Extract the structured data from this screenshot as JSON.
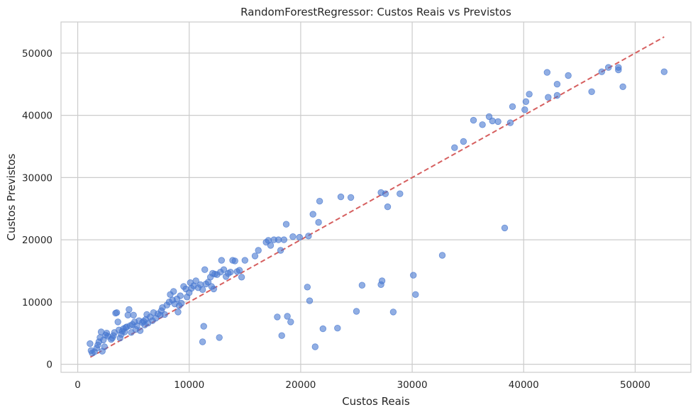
{
  "colors": {
    "background": "#ffffff",
    "grid": "#cccccc",
    "frame": "#cccccc",
    "point": "#4878d0",
    "ideal_line": "#d65f5f",
    "text": "#262626"
  },
  "chart_data": {
    "type": "scatter",
    "title": "RandomForestRegressor: Custos Reais vs Previstos",
    "xlabel": "Custos Reais",
    "ylabel": "Custos Previstos",
    "xlim": [
      -1500,
      55000
    ],
    "ylim": [
      -1300,
      55000
    ],
    "xticks": [
      0,
      10000,
      20000,
      30000,
      40000,
      50000
    ],
    "yticks": [
      0,
      10000,
      20000,
      30000,
      40000,
      50000
    ],
    "xtick_labels": [
      "0",
      "10000",
      "20000",
      "30000",
      "40000",
      "50000"
    ],
    "ytick_labels": [
      "0",
      "10000",
      "20000",
      "30000",
      "40000",
      "50000"
    ],
    "grid": true,
    "marker": "circle",
    "marker_alpha": 0.6,
    "reference_line": {
      "style": "dashed",
      "from": [
        1130,
        1130
      ],
      "to": [
        52600,
        52600
      ]
    },
    "points": [
      [
        1100,
        3300
      ],
      [
        1200,
        2200
      ],
      [
        1300,
        1800
      ],
      [
        1500,
        2000
      ],
      [
        1700,
        2600
      ],
      [
        1800,
        3100
      ],
      [
        1900,
        3600
      ],
      [
        2000,
        4300
      ],
      [
        2100,
        5200
      ],
      [
        2200,
        2100
      ],
      [
        2300,
        3900
      ],
      [
        2400,
        2800
      ],
      [
        2500,
        4700
      ],
      [
        2600,
        5000
      ],
      [
        2700,
        4500
      ],
      [
        3000,
        4000
      ],
      [
        3100,
        4200
      ],
      [
        3200,
        4600
      ],
      [
        3300,
        5100
      ],
      [
        3400,
        8200
      ],
      [
        3500,
        8300
      ],
      [
        3600,
        6800
      ],
      [
        3700,
        5500
      ],
      [
        3800,
        4200
      ],
      [
        3900,
        4800
      ],
      [
        4000,
        5300
      ],
      [
        4100,
        5700
      ],
      [
        4200,
        5200
      ],
      [
        4300,
        5900
      ],
      [
        4400,
        6000
      ],
      [
        4500,
        7900
      ],
      [
        4600,
        8800
      ],
      [
        4700,
        6200
      ],
      [
        4800,
        5100
      ],
      [
        4900,
        6400
      ],
      [
        5000,
        7900
      ],
      [
        5100,
        6800
      ],
      [
        5200,
        5600
      ],
      [
        5300,
        6200
      ],
      [
        5500,
        7000
      ],
      [
        5600,
        5400
      ],
      [
        5800,
        6700
      ],
      [
        5900,
        6900
      ],
      [
        6000,
        6300
      ],
      [
        6100,
        7200
      ],
      [
        6200,
        8000
      ],
      [
        6300,
        6600
      ],
      [
        6500,
        7600
      ],
      [
        6700,
        7000
      ],
      [
        6800,
        8300
      ],
      [
        7000,
        7400
      ],
      [
        7200,
        8100
      ],
      [
        7400,
        7900
      ],
      [
        7500,
        8600
      ],
      [
        7600,
        9100
      ],
      [
        7800,
        8000
      ],
      [
        8000,
        9500
      ],
      [
        8200,
        10000
      ],
      [
        8300,
        11200
      ],
      [
        8500,
        10300
      ],
      [
        8600,
        11700
      ],
      [
        8700,
        9700
      ],
      [
        8900,
        10500
      ],
      [
        9000,
        8400
      ],
      [
        9100,
        9400
      ],
      [
        9200,
        11000
      ],
      [
        9300,
        9800
      ],
      [
        9500,
        12500
      ],
      [
        9700,
        12100
      ],
      [
        9800,
        10800
      ],
      [
        10000,
        11500
      ],
      [
        10100,
        13100
      ],
      [
        10200,
        12200
      ],
      [
        10400,
        12600
      ],
      [
        10600,
        13400
      ],
      [
        10800,
        12300
      ],
      [
        11000,
        12800
      ],
      [
        11200,
        12000
      ],
      [
        11300,
        6100
      ],
      [
        11400,
        15200
      ],
      [
        11500,
        12900
      ],
      [
        11700,
        13200
      ],
      [
        11900,
        14000
      ],
      [
        12000,
        12500
      ],
      [
        12100,
        14600
      ],
      [
        12200,
        12100
      ],
      [
        12300,
        14500
      ],
      [
        12500,
        14400
      ],
      [
        12700,
        4300
      ],
      [
        12800,
        14800
      ],
      [
        12900,
        16700
      ],
      [
        13100,
        15200
      ],
      [
        13300,
        14100
      ],
      [
        13500,
        14600
      ],
      [
        13700,
        14800
      ],
      [
        13900,
        16700
      ],
      [
        14100,
        16600
      ],
      [
        14300,
        14900
      ],
      [
        14500,
        15100
      ],
      [
        14700,
        14000
      ],
      [
        15000,
        16700
      ],
      [
        11200,
        3600
      ],
      [
        15900,
        17400
      ],
      [
        16200,
        18300
      ],
      [
        16900,
        19600
      ],
      [
        17100,
        19900
      ],
      [
        17300,
        19100
      ],
      [
        17600,
        20000
      ],
      [
        17900,
        7600
      ],
      [
        18000,
        20000
      ],
      [
        18200,
        18300
      ],
      [
        18300,
        4600
      ],
      [
        18500,
        20000
      ],
      [
        18700,
        22500
      ],
      [
        18800,
        7700
      ],
      [
        19100,
        6800
      ],
      [
        19300,
        20500
      ],
      [
        19900,
        20400
      ],
      [
        20600,
        12400
      ],
      [
        20700,
        20600
      ],
      [
        20800,
        10200
      ],
      [
        21100,
        24100
      ],
      [
        21300,
        2800
      ],
      [
        21700,
        26200
      ],
      [
        21600,
        22800
      ],
      [
        22000,
        5700
      ],
      [
        23300,
        5800
      ],
      [
        23600,
        26900
      ],
      [
        24500,
        26800
      ],
      [
        25000,
        8500
      ],
      [
        25500,
        12700
      ],
      [
        27200,
        12800
      ],
      [
        27300,
        13400
      ],
      [
        27200,
        27600
      ],
      [
        27600,
        27400
      ],
      [
        27800,
        25300
      ],
      [
        28300,
        8400
      ],
      [
        28900,
        27400
      ],
      [
        30100,
        14300
      ],
      [
        30300,
        11200
      ],
      [
        32700,
        17500
      ],
      [
        33800,
        34800
      ],
      [
        34600,
        35800
      ],
      [
        35500,
        39200
      ],
      [
        36300,
        38500
      ],
      [
        36900,
        39800
      ],
      [
        37200,
        39100
      ],
      [
        37700,
        39000
      ],
      [
        38300,
        21900
      ],
      [
        38800,
        38800
      ],
      [
        39000,
        41400
      ],
      [
        40100,
        40900
      ],
      [
        40200,
        42200
      ],
      [
        40500,
        43400
      ],
      [
        42100,
        46900
      ],
      [
        42200,
        42900
      ],
      [
        43000,
        43200
      ],
      [
        43000,
        45000
      ],
      [
        44000,
        46400
      ],
      [
        46100,
        43800
      ],
      [
        47000,
        47000
      ],
      [
        47600,
        47700
      ],
      [
        48500,
        47700
      ],
      [
        48500,
        47300
      ],
      [
        48900,
        44600
      ],
      [
        52600,
        47000
      ]
    ]
  }
}
